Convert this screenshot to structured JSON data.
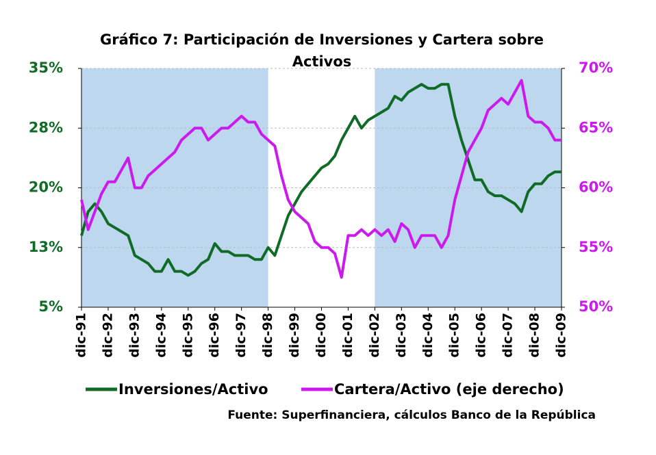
{
  "chart_data": {
    "type": "line",
    "title": "Gráfico 7: Participación de Inversiones y Cartera sobre Activos",
    "source": "Fuente: Superfinanciera, cálculos Banco de la República",
    "categories": [
      "dic-91",
      null,
      null,
      null,
      "dic-92",
      null,
      null,
      null,
      "dic-93",
      null,
      null,
      null,
      "dic-94",
      null,
      null,
      null,
      "dic-95",
      null,
      null,
      null,
      "dic-96",
      null,
      null,
      null,
      "dic-97",
      null,
      null,
      null,
      "dic-98",
      null,
      null,
      null,
      "dic-99",
      null,
      null,
      null,
      "dic-00",
      null,
      null,
      null,
      "dic-01",
      null,
      null,
      null,
      "dic-02",
      null,
      null,
      null,
      "dic-03",
      null,
      null,
      null,
      "dic-04",
      null,
      null,
      null,
      "dic-05",
      null,
      null,
      null,
      "dic-06",
      null,
      null,
      null,
      "dic-07",
      null,
      null,
      null,
      "dic-08",
      null,
      null,
      null,
      "dic-09"
    ],
    "series": [
      {
        "name": "Inversiones/Activo",
        "color": "#0f6b25",
        "axis": "y",
        "values": [
          14,
          17,
          18,
          17,
          15.5,
          15,
          14.5,
          14,
          11.5,
          11,
          10.5,
          9.5,
          9.5,
          11,
          9.5,
          9.5,
          9,
          9.5,
          10.5,
          11,
          13,
          12,
          12,
          11.5,
          11.5,
          11.5,
          11,
          11,
          12.5,
          11.5,
          14,
          16.5,
          18,
          19.5,
          20.5,
          21.5,
          22.5,
          23,
          24,
          26,
          27.5,
          29,
          27.5,
          28.5,
          29,
          29.5,
          30,
          31.5,
          31,
          32,
          32.5,
          33,
          32.5,
          32.5,
          33,
          33,
          29,
          26,
          23.5,
          21,
          21,
          19.5,
          19,
          19,
          18.5,
          18,
          17,
          19.5,
          20.5,
          20.5,
          21.5,
          22,
          22
        ]
      },
      {
        "name": "Cartera/Activo (eje derecho)",
        "color": "#cc1aee",
        "axis": "y2",
        "values": [
          59,
          56.5,
          58,
          59.5,
          60.5,
          60.5,
          61.5,
          62.5,
          60,
          60,
          61,
          61.5,
          62,
          62.5,
          63,
          64,
          64.5,
          65,
          65,
          64,
          64.5,
          65,
          65,
          65.5,
          66,
          65.5,
          65.5,
          64.5,
          64,
          63.5,
          61,
          59,
          58,
          57.5,
          57,
          55.5,
          55,
          55,
          54.5,
          52.5,
          56,
          56,
          56.5,
          56,
          56.5,
          56,
          56.5,
          55.5,
          57,
          56.5,
          55,
          56,
          56,
          56,
          55,
          56,
          59,
          61,
          63,
          64,
          65,
          66.5,
          67,
          67.5,
          67,
          68,
          69,
          66,
          65.5,
          65.5,
          65,
          64,
          64
        ]
      }
    ],
    "ylim": [
      5,
      35
    ],
    "yticks": [
      {
        "value": 5,
        "label": "5%"
      },
      {
        "value": 12.5,
        "label": "13%"
      },
      {
        "value": 20,
        "label": "20%"
      },
      {
        "value": 27.5,
        "label": "28%"
      },
      {
        "value": 35,
        "label": "35%"
      }
    ],
    "y2lim": [
      50,
      70
    ],
    "y2ticks": [
      {
        "value": 50,
        "label": "50%"
      },
      {
        "value": 55,
        "label": "55%"
      },
      {
        "value": 60,
        "label": "60%"
      },
      {
        "value": 65,
        "label": "65%"
      },
      {
        "value": 70,
        "label": "70%"
      }
    ],
    "shaded": [
      {
        "from": "dic-91",
        "to": "dic-98",
        "color": "#bdd7ee"
      },
      {
        "from": "dic-02",
        "to": "dic-09",
        "color": "#bdd7ee"
      }
    ],
    "legend": "bottom"
  }
}
